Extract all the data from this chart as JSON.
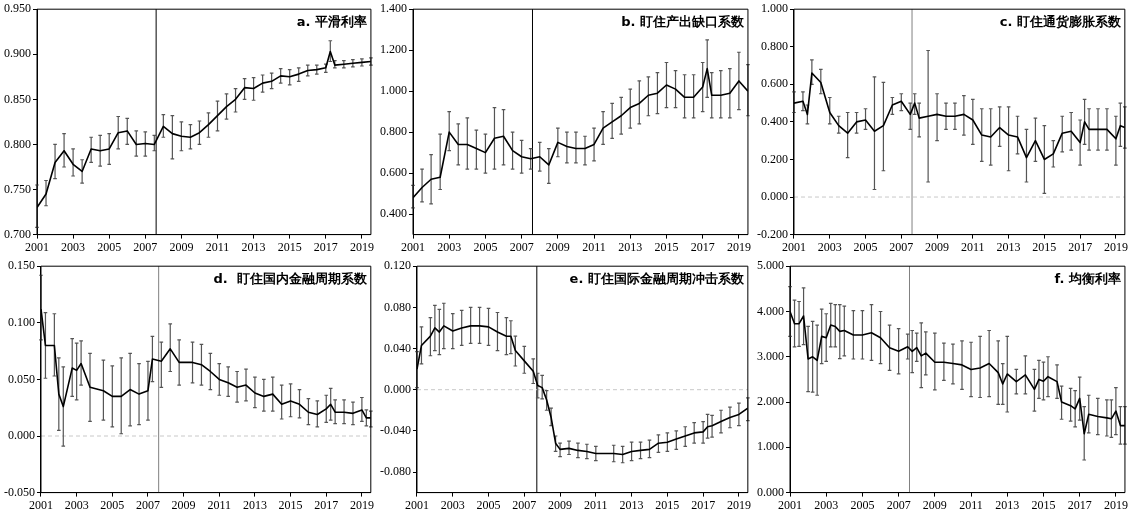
{
  "chart_data": [
    {
      "type": "line",
      "title": "a. 平滑利率",
      "color": "#000000",
      "marker": "none",
      "line_style": "solid",
      "x": [
        2001,
        2001.5,
        2002,
        2002.5,
        2003,
        2003.5,
        2004,
        2004.5,
        2005,
        2005.5,
        2006,
        2006.5,
        2007,
        2007.5,
        2008,
        2008.5,
        2009,
        2009.5,
        2010,
        2010.5,
        2011,
        2011.5,
        2012,
        2012.5,
        2013,
        2013.5,
        2014,
        2014.5,
        2015,
        2015.5,
        2016,
        2016.5,
        2017,
        2017.25,
        2017.5,
        2018,
        2018.5,
        2019,
        2019.5
      ],
      "values": [
        0.73,
        0.745,
        0.78,
        0.793,
        0.778,
        0.77,
        0.795,
        0.793,
        0.795,
        0.813,
        0.815,
        0.8,
        0.801,
        0.8,
        0.82,
        0.812,
        0.809,
        0.808,
        0.813,
        0.822,
        0.832,
        0.842,
        0.85,
        0.863,
        0.862,
        0.868,
        0.87,
        0.876,
        0.875,
        0.878,
        0.882,
        0.883,
        0.885,
        0.903,
        0.888,
        0.889,
        0.89,
        0.891,
        0.892
      ],
      "errors": [
        [
          0.708,
          0.755
        ],
        [
          0.732,
          0.76
        ],
        [
          0.762,
          0.8
        ],
        [
          0.775,
          0.812
        ],
        [
          0.765,
          0.795
        ],
        [
          0.757,
          0.783
        ],
        [
          0.78,
          0.808
        ],
        [
          0.776,
          0.81
        ],
        [
          0.778,
          0.812
        ],
        [
          0.795,
          0.831
        ],
        [
          0.8,
          0.829
        ],
        [
          0.787,
          0.815
        ],
        [
          0.787,
          0.814
        ],
        [
          0.793,
          0.81
        ],
        [
          0.808,
          0.833
        ],
        [
          0.784,
          0.832
        ],
        [
          0.793,
          0.825
        ],
        [
          0.795,
          0.822
        ],
        [
          0.8,
          0.826
        ],
        [
          0.808,
          0.835
        ],
        [
          0.815,
          0.848
        ],
        [
          0.828,
          0.856
        ],
        [
          0.836,
          0.862
        ],
        [
          0.85,
          0.873
        ],
        [
          0.849,
          0.874
        ],
        [
          0.858,
          0.877
        ],
        [
          0.862,
          0.879
        ],
        [
          0.868,
          0.884
        ],
        [
          0.866,
          0.883
        ],
        [
          0.87,
          0.885
        ],
        [
          0.876,
          0.888
        ],
        [
          0.878,
          0.888
        ],
        [
          0.88,
          0.889
        ],
        [
          0.892,
          0.915
        ],
        [
          0.885,
          0.893
        ],
        [
          0.885,
          0.893
        ],
        [
          0.886,
          0.894
        ],
        [
          0.887,
          0.895
        ],
        [
          0.888,
          0.896
        ]
      ],
      "xlim": [
        2001,
        2019.5
      ],
      "xticks": [
        2001,
        2003,
        2005,
        2007,
        2009,
        2011,
        2013,
        2015,
        2017,
        2019
      ],
      "ylim": [
        0.7,
        0.95
      ],
      "yticks": [
        {
          "value": 0.7,
          "label": "0.700"
        },
        {
          "value": 0.75,
          "label": "0.750"
        },
        {
          "value": 0.8,
          "label": "0.800"
        },
        {
          "value": 0.85,
          "label": "0.850"
        },
        {
          "value": 0.9,
          "label": "0.900"
        },
        {
          "value": 0.95,
          "label": "0.950"
        }
      ],
      "ref_lines": [
        {
          "axis": "x",
          "value": 2007.6,
          "color": "#000000",
          "line_style": "solid"
        }
      ]
    },
    {
      "type": "line",
      "title": "b. 盯住产出缺口系数",
      "color": "#000000",
      "marker": "none",
      "line_style": "solid",
      "x": [
        2001,
        2001.5,
        2002,
        2002.5,
        2003,
        2003.5,
        2004,
        2004.5,
        2005,
        2005.5,
        2006,
        2006.5,
        2007,
        2007.5,
        2008,
        2008.5,
        2009,
        2009.5,
        2010,
        2010.5,
        2011,
        2011.5,
        2012,
        2012.5,
        2013,
        2013.5,
        2014,
        2014.5,
        2015,
        2015.5,
        2016,
        2016.5,
        2017,
        2017.25,
        2017.5,
        2018,
        2018.5,
        2019,
        2019.5
      ],
      "values": [
        0.48,
        0.53,
        0.57,
        0.58,
        0.8,
        0.74,
        0.74,
        0.72,
        0.7,
        0.77,
        0.78,
        0.71,
        0.68,
        0.67,
        0.68,
        0.64,
        0.75,
        0.73,
        0.72,
        0.72,
        0.74,
        0.82,
        0.85,
        0.88,
        0.92,
        0.94,
        0.98,
        0.99,
        1.03,
        1.01,
        0.97,
        0.97,
        1.02,
        1.11,
        0.98,
        0.98,
        0.99,
        1.05,
        1.0
      ],
      "errors": [
        [
          0.43,
          0.54
        ],
        [
          0.46,
          0.62
        ],
        [
          0.45,
          0.69
        ],
        [
          0.52,
          0.79
        ],
        [
          0.71,
          0.9
        ],
        [
          0.64,
          0.84
        ],
        [
          0.62,
          0.87
        ],
        [
          0.62,
          0.81
        ],
        [
          0.6,
          0.79
        ],
        [
          0.62,
          0.92
        ],
        [
          0.64,
          0.91
        ],
        [
          0.62,
          0.8
        ],
        [
          0.6,
          0.76
        ],
        [
          0.62,
          0.72
        ],
        [
          0.61,
          0.75
        ],
        [
          0.55,
          0.72
        ],
        [
          0.68,
          0.82
        ],
        [
          0.65,
          0.8
        ],
        [
          0.65,
          0.8
        ],
        [
          0.64,
          0.78
        ],
        [
          0.66,
          0.82
        ],
        [
          0.74,
          0.9
        ],
        [
          0.77,
          0.94
        ],
        [
          0.79,
          0.97
        ],
        [
          0.82,
          1.01
        ],
        [
          0.84,
          1.05
        ],
        [
          0.88,
          1.07
        ],
        [
          0.89,
          1.09
        ],
        [
          0.92,
          1.14
        ],
        [
          0.92,
          1.1
        ],
        [
          0.87,
          1.08
        ],
        [
          0.87,
          1.08
        ],
        [
          0.9,
          1.14
        ],
        [
          0.97,
          1.25
        ],
        [
          0.87,
          1.09
        ],
        [
          0.87,
          1.1
        ],
        [
          0.87,
          1.11
        ],
        [
          0.91,
          1.19
        ],
        [
          0.88,
          1.13
        ]
      ],
      "xlim": [
        2001,
        2019.5
      ],
      "xticks": [
        2001,
        2003,
        2005,
        2007,
        2009,
        2011,
        2013,
        2015,
        2017,
        2019
      ],
      "ylim": [
        0.3,
        1.4
      ],
      "yticks": [
        {
          "value": 0.4,
          "label": "0.400"
        },
        {
          "value": 0.6,
          "label": "0.600"
        },
        {
          "value": 0.8,
          "label": "0.800"
        },
        {
          "value": 1.0,
          "label": "1.000"
        },
        {
          "value": 1.2,
          "label": "1.200"
        },
        {
          "value": 1.4,
          "label": "1.400"
        }
      ],
      "ref_lines": [
        {
          "axis": "x",
          "value": 2007.6,
          "color": "#000000",
          "line_style": "solid"
        }
      ]
    },
    {
      "type": "line",
      "title": "c. 盯住通货膨胀系数",
      "color": "#000000",
      "marker": "none",
      "line_style": "solid",
      "x": [
        2001,
        2001.5,
        2001.75,
        2002,
        2002.5,
        2003,
        2003.5,
        2004,
        2004.5,
        2005,
        2005.5,
        2006,
        2006.5,
        2007,
        2007.5,
        2007.75,
        2008,
        2008.5,
        2009,
        2009.5,
        2010,
        2010.5,
        2011,
        2011.5,
        2012,
        2012.5,
        2013,
        2013.5,
        2014,
        2014.5,
        2015,
        2015.5,
        2016,
        2016.5,
        2017,
        2017.25,
        2017.5,
        2018,
        2018.5,
        2019,
        2019.25,
        2019.5
      ],
      "values": [
        0.5,
        0.51,
        0.44,
        0.66,
        0.61,
        0.45,
        0.38,
        0.34,
        0.4,
        0.41,
        0.35,
        0.38,
        0.49,
        0.51,
        0.44,
        0.5,
        0.42,
        0.43,
        0.44,
        0.43,
        0.43,
        0.44,
        0.41,
        0.33,
        0.32,
        0.37,
        0.33,
        0.32,
        0.21,
        0.3,
        0.2,
        0.23,
        0.34,
        0.35,
        0.29,
        0.4,
        0.36,
        0.36,
        0.36,
        0.31,
        0.38,
        0.37
      ],
      "errors": [
        [
          0.45,
          0.56
        ],
        [
          0.46,
          0.56
        ],
        [
          0.39,
          0.49
        ],
        [
          0.6,
          0.73
        ],
        [
          0.55,
          0.68
        ],
        [
          0.39,
          0.53
        ],
        [
          0.34,
          0.43
        ],
        [
          0.21,
          0.45
        ],
        [
          0.34,
          0.45
        ],
        [
          0.36,
          0.47
        ],
        [
          0.04,
          0.64
        ],
        [
          0.14,
          0.61
        ],
        [
          0.44,
          0.53
        ],
        [
          0.46,
          0.55
        ],
        [
          0.36,
          0.5
        ],
        [
          0.44,
          0.55
        ],
        [
          0.32,
          0.5
        ],
        [
          0.08,
          0.78
        ],
        [
          0.3,
          0.55
        ],
        [
          0.36,
          0.5
        ],
        [
          0.36,
          0.5
        ],
        [
          0.33,
          0.54
        ],
        [
          0.28,
          0.52
        ],
        [
          0.19,
          0.47
        ],
        [
          0.17,
          0.47
        ],
        [
          0.27,
          0.48
        ],
        [
          0.14,
          0.48
        ],
        [
          0.23,
          0.43
        ],
        [
          0.08,
          0.36
        ],
        [
          0.19,
          0.42
        ],
        [
          0.02,
          0.38
        ],
        [
          0.16,
          0.3
        ],
        [
          0.24,
          0.43
        ],
        [
          0.25,
          0.45
        ],
        [
          0.17,
          0.41
        ],
        [
          0.28,
          0.52
        ],
        [
          0.25,
          0.47
        ],
        [
          0.25,
          0.47
        ],
        [
          0.25,
          0.47
        ],
        [
          0.17,
          0.43
        ],
        [
          0.27,
          0.5
        ],
        [
          0.26,
          0.48
        ]
      ],
      "xlim": [
        2001,
        2019.5
      ],
      "xticks": [
        2001,
        2003,
        2005,
        2007,
        2009,
        2011,
        2013,
        2015,
        2017,
        2019
      ],
      "ylim": [
        -0.2,
        1.0
      ],
      "yticks": [
        {
          "value": -0.2,
          "label": "-0.200"
        },
        {
          "value": 0,
          "label": "0.000"
        },
        {
          "value": 0.2,
          "label": "0.200"
        },
        {
          "value": 0.4,
          "label": "0.400"
        },
        {
          "value": 0.6,
          "label": "0.600"
        },
        {
          "value": 0.8,
          "label": "0.800"
        },
        {
          "value": 1.0,
          "label": "1.000"
        }
      ],
      "ref_lines": [
        {
          "axis": "x",
          "value": 2007.6,
          "color": "#808080",
          "line_style": "solid"
        },
        {
          "axis": "y",
          "value": 0,
          "color": "#c8c8c8",
          "line_style": "dashed"
        }
      ]
    },
    {
      "type": "line",
      "title": "d.  盯住国内金融周期系数",
      "color": "#000000",
      "marker": "none",
      "line_style": "solid",
      "x": [
        2001,
        2001.25,
        2001.75,
        2002,
        2002.25,
        2002.75,
        2003,
        2003.25,
        2003.75,
        2004.5,
        2005,
        2005.5,
        2006,
        2006.5,
        2007,
        2007.25,
        2007.75,
        2008.25,
        2008.75,
        2009.5,
        2010,
        2010.5,
        2011,
        2011.5,
        2012,
        2012.5,
        2013,
        2013.5,
        2014,
        2014.5,
        2015,
        2015.5,
        2016,
        2016.5,
        2017,
        2017.25,
        2017.5,
        2018,
        2018.5,
        2019,
        2019.25,
        2019.5
      ],
      "values": [
        0.112,
        0.08,
        0.08,
        0.037,
        0.026,
        0.06,
        0.058,
        0.064,
        0.043,
        0.04,
        0.035,
        0.035,
        0.041,
        0.037,
        0.04,
        0.068,
        0.066,
        0.077,
        0.065,
        0.065,
        0.063,
        0.057,
        0.05,
        0.047,
        0.043,
        0.045,
        0.038,
        0.035,
        0.037,
        0.028,
        0.031,
        0.028,
        0.021,
        0.019,
        0.024,
        0.028,
        0.021,
        0.021,
        0.02,
        0.023,
        0.016,
        0.016
      ],
      "errors": [
        [
          0.085,
          0.142
        ],
        [
          0.051,
          0.109
        ],
        [
          0.053,
          0.108
        ],
        [
          0.005,
          0.069
        ],
        [
          -0.009,
          0.061
        ],
        [
          0.035,
          0.086
        ],
        [
          0.032,
          0.082
        ],
        [
          0.045,
          0.084
        ],
        [
          0.013,
          0.073
        ],
        [
          0.014,
          0.067
        ],
        [
          0.008,
          0.062
        ],
        [
          0.002,
          0.069
        ],
        [
          0.009,
          0.073
        ],
        [
          0.01,
          0.064
        ],
        [
          0.014,
          0.066
        ],
        [
          0.048,
          0.088
        ],
        [
          0.043,
          0.083
        ],
        [
          0.057,
          0.099
        ],
        [
          0.045,
          0.085
        ],
        [
          0.047,
          0.083
        ],
        [
          0.045,
          0.081
        ],
        [
          0.041,
          0.073
        ],
        [
          0.036,
          0.064
        ],
        [
          0.035,
          0.061
        ],
        [
          0.03,
          0.057
        ],
        [
          0.031,
          0.059
        ],
        [
          0.025,
          0.052
        ],
        [
          0.022,
          0.05
        ],
        [
          0.022,
          0.052
        ],
        [
          0.015,
          0.045
        ],
        [
          0.017,
          0.046
        ],
        [
          0.016,
          0.041
        ],
        [
          0.01,
          0.033
        ],
        [
          0.008,
          0.031
        ],
        [
          0.012,
          0.036
        ],
        [
          0.014,
          0.042
        ],
        [
          0.011,
          0.032
        ],
        [
          0.011,
          0.032
        ],
        [
          0.01,
          0.03
        ],
        [
          0.013,
          0.034
        ],
        [
          0.009,
          0.023
        ],
        [
          0.008,
          0.022
        ]
      ],
      "xlim": [
        2001,
        2019.5
      ],
      "xticks": [
        2001,
        2003,
        2005,
        2007,
        2009,
        2011,
        2013,
        2015,
        2017,
        2019
      ],
      "ylim": [
        -0.05,
        0.15
      ],
      "yticks": [
        {
          "value": -0.05,
          "label": "-0.050"
        },
        {
          "value": 0,
          "label": "0.000"
        },
        {
          "value": 0.05,
          "label": "0.050"
        },
        {
          "value": 0.1,
          "label": "0.100"
        },
        {
          "value": 0.15,
          "label": "0.150"
        }
      ],
      "ref_lines": [
        {
          "axis": "x",
          "value": 2007.6,
          "color": "#808080",
          "line_style": "solid"
        },
        {
          "axis": "y",
          "value": 0,
          "color": "#c8c8c8",
          "line_style": "dashed"
        }
      ]
    },
    {
      "type": "line",
      "title": "e. 盯住国际金融周期冲击系数",
      "color": "#000000",
      "marker": "none",
      "line_style": "solid",
      "x": [
        2001,
        2001.25,
        2001.75,
        2002,
        2002.25,
        2002.5,
        2003,
        2003.5,
        2004,
        2004.5,
        2005,
        2005.5,
        2006,
        2006.25,
        2006.5,
        2007,
        2007.5,
        2007.75,
        2008,
        2008.25,
        2008.5,
        2008.75,
        2009,
        2009.5,
        2010,
        2010.5,
        2011,
        2012,
        2012.5,
        2013,
        2013.5,
        2014,
        2014.5,
        2015,
        2015.5,
        2016,
        2016.5,
        2017,
        2017.25,
        2017.5,
        2018,
        2018.5,
        2019,
        2019.5
      ],
      "values": [
        0.02,
        0.043,
        0.052,
        0.06,
        0.056,
        0.062,
        0.057,
        0.06,
        0.062,
        0.062,
        0.061,
        0.056,
        0.052,
        0.052,
        0.038,
        0.028,
        0.018,
        0.004,
        0.002,
        -0.01,
        -0.027,
        -0.052,
        -0.058,
        -0.057,
        -0.059,
        -0.06,
        -0.062,
        -0.062,
        -0.063,
        -0.06,
        -0.059,
        -0.058,
        -0.052,
        -0.051,
        -0.048,
        -0.045,
        -0.042,
        -0.041,
        -0.036,
        -0.035,
        -0.031,
        -0.027,
        -0.024,
        -0.018
      ],
      "errors": [
        [
          0.002,
          0.037
        ],
        [
          0.025,
          0.061
        ],
        [
          0.033,
          0.07
        ],
        [
          0.038,
          0.082
        ],
        [
          0.034,
          0.078
        ],
        [
          0.04,
          0.084
        ],
        [
          0.04,
          0.074
        ],
        [
          0.043,
          0.077
        ],
        [
          0.045,
          0.08
        ],
        [
          0.045,
          0.08
        ],
        [
          0.043,
          0.079
        ],
        [
          0.038,
          0.075
        ],
        [
          0.034,
          0.07
        ],
        [
          0.035,
          0.067
        ],
        [
          0.023,
          0.052
        ],
        [
          0.016,
          0.042
        ],
        [
          0.006,
          0.03
        ],
        [
          -0.008,
          0.016
        ],
        [
          -0.009,
          0.014
        ],
        [
          -0.02,
          -0.001
        ],
        [
          -0.035,
          -0.018
        ],
        [
          -0.06,
          -0.045
        ],
        [
          -0.065,
          -0.052
        ],
        [
          -0.063,
          -0.05
        ],
        [
          -0.066,
          -0.052
        ],
        [
          -0.067,
          -0.053
        ],
        [
          -0.069,
          -0.055
        ],
        [
          -0.07,
          -0.054
        ],
        [
          -0.071,
          -0.055
        ],
        [
          -0.069,
          -0.051
        ],
        [
          -0.067,
          -0.051
        ],
        [
          -0.066,
          -0.049
        ],
        [
          -0.061,
          -0.044
        ],
        [
          -0.06,
          -0.042
        ],
        [
          -0.058,
          -0.04
        ],
        [
          -0.055,
          -0.036
        ],
        [
          -0.052,
          -0.032
        ],
        [
          -0.052,
          -0.031
        ],
        [
          -0.047,
          -0.024
        ],
        [
          -0.046,
          -0.025
        ],
        [
          -0.042,
          -0.02
        ],
        [
          -0.037,
          -0.017
        ],
        [
          -0.035,
          -0.013
        ],
        [
          -0.03,
          -0.008
        ]
      ],
      "xlim": [
        2001,
        2019.5
      ],
      "xticks": [
        2001,
        2003,
        2005,
        2007,
        2009,
        2011,
        2013,
        2015,
        2017,
        2019
      ],
      "ylim": [
        -0.1,
        0.12
      ],
      "yticks": [
        {
          "value": -0.08,
          "label": "-0.080"
        },
        {
          "value": -0.04,
          "label": "-0.040"
        },
        {
          "value": 0,
          "label": "0.000"
        },
        {
          "value": 0.04,
          "label": "0.040"
        },
        {
          "value": 0.08,
          "label": "0.080"
        },
        {
          "value": 0.12,
          "label": "0.120"
        }
      ],
      "ref_lines": [
        {
          "axis": "x",
          "value": 2007.7,
          "color": "#000000",
          "line_style": "solid"
        },
        {
          "axis": "y",
          "value": 0,
          "color": "#c8c8c8",
          "line_style": "dashed"
        }
      ]
    },
    {
      "type": "line",
      "title": "f. 均衡利率",
      "color": "#000000",
      "marker": "none",
      "line_style": "solid",
      "x": [
        2001,
        2001.25,
        2001.5,
        2001.75,
        2002,
        2002.25,
        2002.5,
        2002.75,
        2003,
        2003.25,
        2003.5,
        2003.75,
        2004,
        2004.5,
        2005,
        2005.5,
        2006,
        2006.5,
        2007,
        2007.5,
        2007.75,
        2008,
        2008.25,
        2008.5,
        2009,
        2009.5,
        2010,
        2010.5,
        2011,
        2011.5,
        2012,
        2012.5,
        2012.75,
        2013,
        2013.5,
        2014,
        2014.5,
        2014.75,
        2015,
        2015.25,
        2015.75,
        2016,
        2016.5,
        2016.75,
        2017,
        2017.25,
        2017.5,
        2018,
        2018.5,
        2018.75,
        2019,
        2019.25,
        2019.5
      ],
      "values": [
        4.0,
        3.73,
        3.73,
        3.9,
        2.95,
        3.0,
        2.92,
        3.45,
        3.42,
        3.7,
        3.67,
        3.56,
        3.58,
        3.48,
        3.48,
        3.53,
        3.42,
        3.2,
        3.12,
        3.22,
        3.12,
        3.2,
        3.02,
        3.08,
        2.88,
        2.88,
        2.85,
        2.82,
        2.72,
        2.75,
        2.85,
        2.65,
        2.4,
        2.62,
        2.45,
        2.6,
        2.28,
        2.5,
        2.46,
        2.56,
        2.45,
        2.0,
        1.92,
        1.85,
        2.08,
        1.3,
        1.73,
        1.68,
        1.65,
        1.63,
        1.8,
        1.48,
        1.48
      ],
      "errors": [
        [
          3.45,
          4.55
        ],
        [
          3.22,
          4.25
        ],
        [
          3.23,
          4.22
        ],
        [
          3.27,
          4.52
        ],
        [
          2.23,
          3.67
        ],
        [
          2.22,
          3.78
        ],
        [
          2.15,
          3.7
        ],
        [
          2.85,
          4.05
        ],
        [
          2.9,
          3.95
        ],
        [
          3.22,
          4.18
        ],
        [
          3.22,
          4.15
        ],
        [
          2.96,
          4.15
        ],
        [
          3.02,
          4.12
        ],
        [
          2.95,
          4.02
        ],
        [
          2.95,
          4.02
        ],
        [
          2.92,
          4.15
        ],
        [
          2.85,
          4.0
        ],
        [
          2.7,
          3.7
        ],
        [
          2.62,
          3.62
        ],
        [
          2.95,
          3.5
        ],
        [
          2.65,
          3.58
        ],
        [
          2.9,
          3.52
        ],
        [
          2.32,
          3.75
        ],
        [
          2.6,
          3.55
        ],
        [
          2.27,
          3.52
        ],
        [
          2.48,
          3.3
        ],
        [
          2.4,
          3.28
        ],
        [
          2.28,
          3.35
        ],
        [
          2.12,
          3.32
        ],
        [
          2.1,
          3.45
        ],
        [
          2.12,
          3.58
        ],
        [
          1.95,
          3.35
        ],
        [
          1.95,
          2.85
        ],
        [
          1.78,
          3.45
        ],
        [
          2.18,
          2.72
        ],
        [
          2.18,
          3.02
        ],
        [
          1.8,
          2.72
        ],
        [
          2.08,
          2.92
        ],
        [
          2.05,
          2.88
        ],
        [
          2.12,
          3.0
        ],
        [
          2.08,
          2.82
        ],
        [
          1.62,
          2.35
        ],
        [
          1.58,
          2.3
        ],
        [
          1.45,
          2.25
        ],
        [
          1.6,
          2.55
        ],
        [
          0.72,
          1.9
        ],
        [
          1.32,
          2.15
        ],
        [
          1.28,
          2.08
        ],
        [
          1.25,
          2.05
        ],
        [
          1.22,
          2.05
        ],
        [
          1.28,
          2.32
        ],
        [
          1.07,
          1.9
        ],
        [
          1.07,
          1.9
        ]
      ],
      "xlim": [
        2001,
        2019.5
      ],
      "xticks": [
        2001,
        2003,
        2005,
        2007,
        2009,
        2011,
        2013,
        2015,
        2017,
        2019
      ],
      "ylim": [
        0,
        5
      ],
      "yticks": [
        {
          "value": 0,
          "label": "0.000"
        },
        {
          "value": 1,
          "label": "1.000"
        },
        {
          "value": 2,
          "label": "2.000"
        },
        {
          "value": 3,
          "label": "3.000"
        },
        {
          "value": 4,
          "label": "4.000"
        },
        {
          "value": 5,
          "label": "5.000"
        }
      ],
      "ref_lines": [
        {
          "axis": "x",
          "value": 2007.6,
          "color": "#808080",
          "line_style": "solid"
        }
      ]
    }
  ]
}
